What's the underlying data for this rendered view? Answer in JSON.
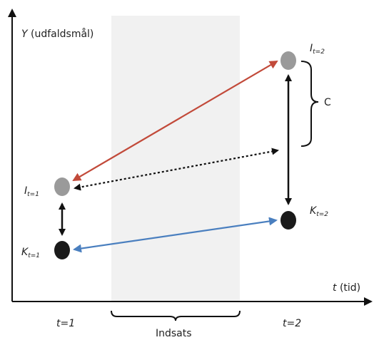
{
  "diagram": {
    "y_axis_label_var": "Y",
    "y_axis_label_text": "(udfaldsmål)",
    "x_axis_label_var": "t",
    "x_axis_label_text": "(tid)",
    "time1_label": "t=1",
    "time2_label": "t=2",
    "intervention_label": "Indsats",
    "c_label": "C",
    "nodes": {
      "I1": {
        "main": "I",
        "sub": "t=1"
      },
      "K1": {
        "main": "K",
        "sub": "t=1"
      },
      "I2": {
        "main": "I",
        "sub": "t=2"
      },
      "K2": {
        "main": "K",
        "sub": "t=2"
      }
    },
    "colors": {
      "gray_node": "#9a9a9a",
      "black_node": "#1a1a1a",
      "red_arrow": "#c24a3a",
      "blue_arrow": "#4a7fbf",
      "shade": "#f1f1f1",
      "axis": "#111111"
    }
  }
}
